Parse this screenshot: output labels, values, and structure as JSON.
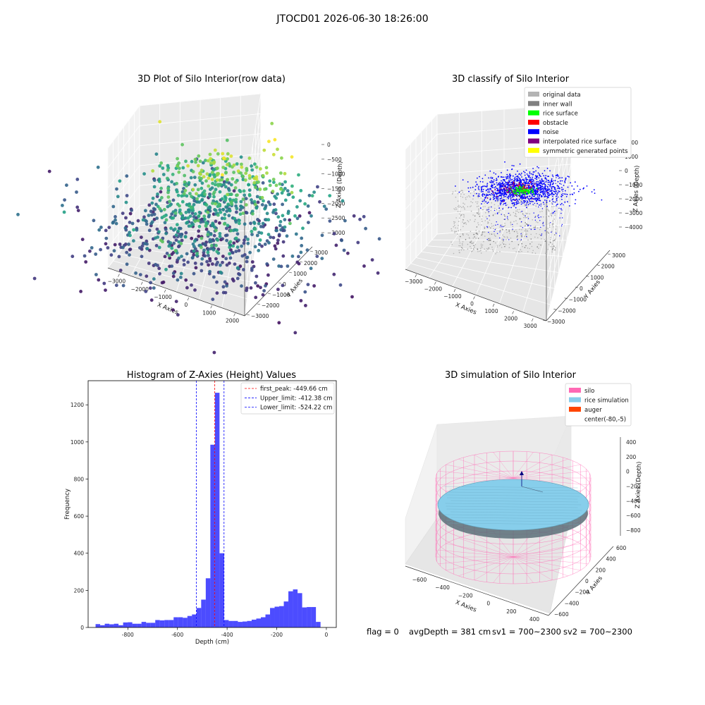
{
  "figure": {
    "suptitle": "JTOCD01 2026-06-30 18:26:00",
    "status": {
      "flag": "flag = 0",
      "avg_depth": "avgDepth = 381 cm",
      "sv1": "sv1 = 700~2300",
      "sv2": "sv2 = 700~2300"
    }
  },
  "chart_data": [
    {
      "type": "scatter",
      "projection": "3d",
      "title": "3D Plot of Silo Interior(row data)",
      "xlabel": "X Axies",
      "ylabel": "Y Axies",
      "zlabel": "Z Axies (Depth)",
      "xticks": [
        "−3000",
        "−2000",
        "−1000",
        "0",
        "1000",
        "2000"
      ],
      "yticks": [
        "−3000",
        "−2000",
        "−1000",
        "0",
        "1000",
        "2000",
        "3000"
      ],
      "zticks": [
        "0",
        "−500",
        "−1000",
        "−1500",
        "−2000",
        "−2500",
        "−3000"
      ],
      "xlim": [
        -3000,
        2000
      ],
      "ylim": [
        -3000,
        3000
      ],
      "zlim": [
        -3000,
        0
      ],
      "colormap": "viridis",
      "grid": true
    },
    {
      "type": "scatter",
      "projection": "3d",
      "title": "3D classify of Silo Interior",
      "xlabel": "X Axies",
      "ylabel": "Y Axies",
      "zlabel": "Z Axies (Depth)",
      "xticks": [
        "−3000",
        "−2000",
        "−1000",
        "0",
        "1000",
        "2000",
        "3000"
      ],
      "yticks": [
        "−3000",
        "−2000",
        "−1000",
        "0",
        "1000",
        "2000",
        "3000"
      ],
      "zticks": [
        "2000",
        "1000",
        "0",
        "−1000",
        "−2000",
        "−3000",
        "−4000"
      ],
      "xlim": [
        -3000,
        3000
      ],
      "ylim": [
        -3000,
        3000
      ],
      "zlim": [
        -4000,
        2000
      ],
      "legend_position": "top-right",
      "legend": [
        {
          "label": "original data",
          "color": "#b4b4b4"
        },
        {
          "label": "inner wall",
          "color": "#808080"
        },
        {
          "label": "rice surface",
          "color": "#00ff00"
        },
        {
          "label": "obstacle",
          "color": "#ff0000"
        },
        {
          "label": "noise",
          "color": "#0000ff"
        },
        {
          "label": "interpolated rice surface",
          "color": "#800080"
        },
        {
          "label": "symmetric generated points",
          "color": "#ffff00"
        }
      ],
      "grid": true
    },
    {
      "type": "bar",
      "title": "Histogram of Z-Axies (Height) Values",
      "xlabel": "Depth (cm)",
      "ylabel": "Frequency",
      "xlim": [
        -960,
        40
      ],
      "ylim": [
        0,
        1330
      ],
      "xticks": [
        -800,
        -600,
        -400,
        -200,
        0
      ],
      "yticks": [
        0,
        200,
        400,
        600,
        800,
        1000,
        1200
      ],
      "bar_color": "#0000ff",
      "bin_width": 18.5,
      "bins_start": -930,
      "values": [
        18,
        12,
        20,
        17,
        20,
        12,
        27,
        28,
        20,
        20,
        30,
        25,
        25,
        40,
        38,
        40,
        40,
        55,
        55,
        52,
        62,
        70,
        105,
        150,
        265,
        985,
        1265,
        400,
        40,
        35,
        35,
        30,
        32,
        35,
        42,
        48,
        55,
        70,
        105,
        112,
        115,
        140,
        195,
        205,
        185,
        108,
        110,
        110,
        30
      ],
      "vlines": [
        {
          "label": "first_peak: -449.66 cm",
          "x": -449.66,
          "color": "#ff0000"
        },
        {
          "label": "Upper_limit: -412.38 cm",
          "x": -412.38,
          "color": "#0000ff"
        },
        {
          "label": "Lower_limit: -524.22 cm",
          "x": -524.22,
          "color": "#0000ff"
        }
      ],
      "legend_position": "top-right",
      "grid": false
    },
    {
      "type": "surface",
      "projection": "3d",
      "title": "3D simulation of Silo Interior",
      "xlabel": "X Axies",
      "ylabel": "Y Axies",
      "zlabel": "Z Axies (Depth)",
      "xticks": [
        "−600",
        "−400",
        "−200",
        "0",
        "200",
        "400"
      ],
      "yticks": [
        "−600",
        "−400",
        "−200",
        "0",
        "200",
        "400",
        "600"
      ],
      "zticks": [
        "400",
        "200",
        "0",
        "−200",
        "−400",
        "−600",
        "−800"
      ],
      "xlim": [
        -600,
        400
      ],
      "ylim": [
        -600,
        600
      ],
      "zlim": [
        -800,
        400
      ],
      "legend_position": "top-right",
      "legend": [
        {
          "label": "silo",
          "color": "#ff69b4"
        },
        {
          "label": "rice simulation",
          "color": "#87ceeb"
        },
        {
          "label": "auger",
          "color": "#ff4500"
        },
        {
          "label": "center(-80,-5)",
          "color": "#ffffff"
        }
      ],
      "grid": true
    }
  ]
}
